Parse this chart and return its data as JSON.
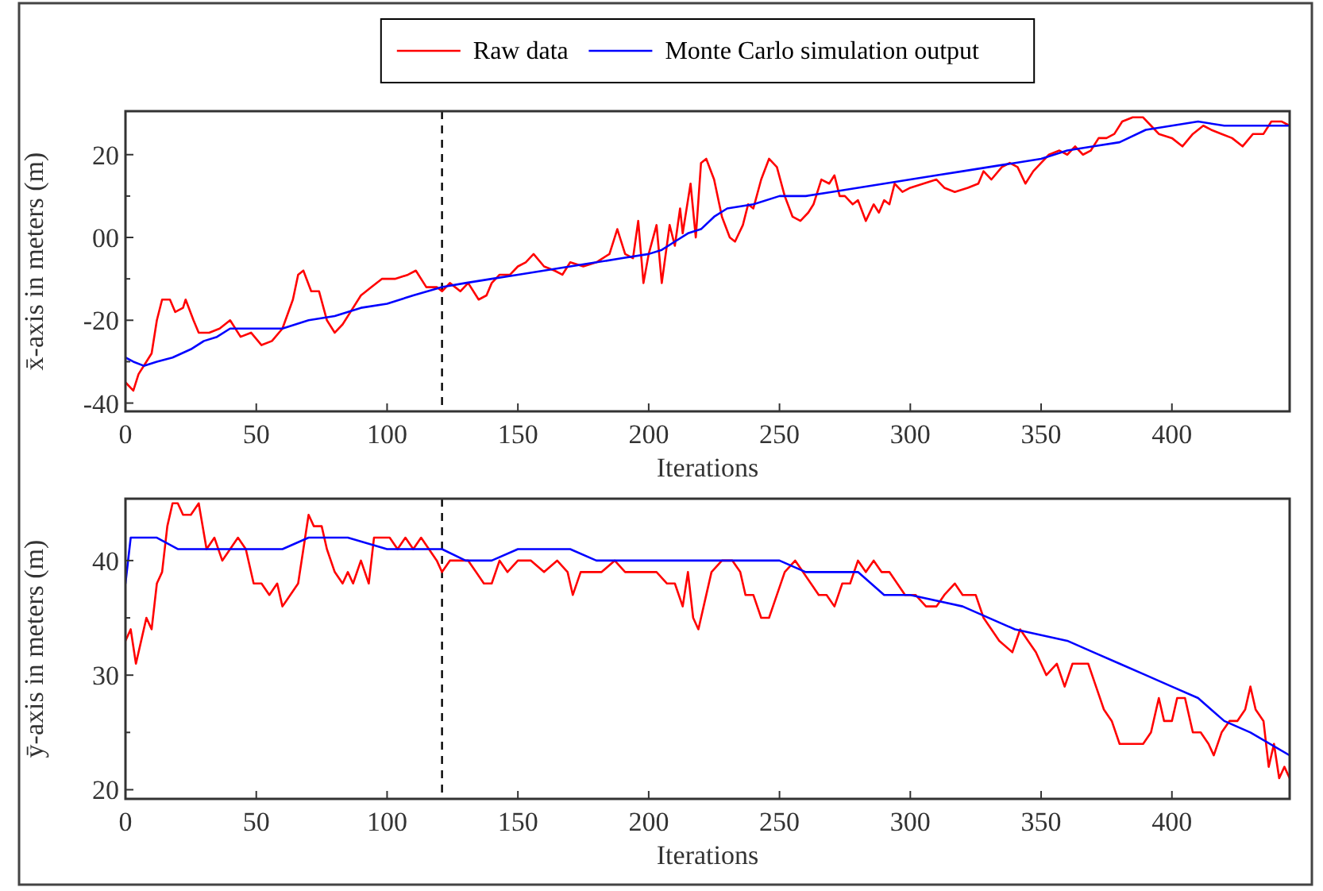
{
  "chart_data": [
    {
      "type": "line",
      "xlabel": "Iterations",
      "ylabel": "x̄-axis in meters (m)",
      "xlim": [
        0,
        445
      ],
      "ylim": [
        -42,
        30.5
      ],
      "xticks": [
        0,
        50,
        100,
        150,
        200,
        250,
        300,
        350,
        400
      ],
      "yticks": [
        -40,
        {
          "value": -30,
          "label": null
        },
        -20,
        {
          "value": -10,
          "label": null
        },
        {
          "value": 0,
          "label": "00"
        },
        {
          "value": 10,
          "label": null
        },
        20
      ],
      "legend": "top",
      "ref_lines": [
        {
          "axis": "x",
          "value": 121,
          "line_style": "dashed",
          "color": "#000000"
        }
      ],
      "series": [
        {
          "name": "Raw data",
          "color": "#ff0000",
          "x": [
            0,
            3,
            5,
            8,
            10,
            12,
            14,
            17,
            19,
            22,
            23,
            26,
            28,
            32,
            36,
            40,
            44,
            48,
            52,
            56,
            60,
            64,
            66,
            68,
            71,
            74,
            77,
            80,
            83,
            86,
            90,
            94,
            98,
            103,
            108,
            111,
            115,
            119,
            121,
            124,
            128,
            131,
            135,
            138,
            140,
            143,
            147,
            150,
            153,
            156,
            160,
            164,
            167,
            170,
            175,
            180,
            185,
            188,
            191,
            194,
            196,
            198,
            200,
            203,
            205,
            208,
            210,
            212,
            213,
            215,
            216,
            218,
            220,
            222,
            225,
            228,
            231,
            233,
            236,
            238,
            240,
            243,
            246,
            249,
            252,
            255,
            258,
            261,
            263,
            266,
            269,
            271,
            273,
            275,
            278,
            280,
            283,
            286,
            288,
            290,
            292,
            294,
            297,
            300,
            305,
            310,
            313,
            317,
            322,
            326,
            328,
            331,
            335,
            338,
            341,
            344,
            347,
            350,
            353,
            357,
            360,
            363,
            366,
            369,
            372,
            375,
            378,
            381,
            385,
            389,
            392,
            395,
            400,
            404,
            408,
            412,
            415,
            419,
            423,
            427,
            431,
            435,
            438,
            442,
            445
          ],
          "values": [
            -35,
            -37,
            -33,
            -30,
            -28,
            -20,
            -15,
            -15,
            -18,
            -17,
            -15,
            -20,
            -23,
            -23,
            -22,
            -20,
            -24,
            -23,
            -26,
            -25,
            -22,
            -15,
            -9,
            -8,
            -13,
            -13,
            -20,
            -23,
            -21,
            -18,
            -14,
            -12,
            -10,
            -10,
            -9,
            -8,
            -12,
            -12,
            -13,
            -11,
            -13,
            -11,
            -15,
            -14,
            -11,
            -9,
            -9,
            -7,
            -6,
            -4,
            -7,
            -8,
            -9,
            -6,
            -7,
            -6,
            -4,
            2,
            -4,
            -5,
            4,
            -11,
            -4,
            3,
            -11,
            3,
            -2,
            7,
            1,
            9,
            13,
            0,
            18,
            19,
            14,
            5,
            0,
            -1,
            3,
            8,
            7,
            14,
            19,
            17,
            10,
            5,
            4,
            6,
            8,
            14,
            13,
            15,
            10,
            10,
            8,
            9,
            4,
            8,
            6,
            9,
            8,
            13,
            11,
            12,
            13,
            14,
            12,
            11,
            12,
            13,
            16,
            14,
            17,
            18,
            17,
            13,
            16,
            18,
            20,
            21,
            20,
            22,
            20,
            21,
            24,
            24,
            25,
            28,
            29,
            29,
            27,
            25,
            24,
            22,
            25,
            27,
            26,
            25,
            24,
            22,
            25,
            25,
            28,
            28,
            27
          ]
        },
        {
          "name": "Monte Carlo simulation output",
          "color": "#0000ff",
          "x": [
            0,
            3,
            7,
            12,
            18,
            25,
            30,
            35,
            40,
            50,
            60,
            70,
            80,
            90,
            100,
            110,
            121,
            130,
            140,
            150,
            160,
            170,
            180,
            190,
            200,
            205,
            210,
            215,
            220,
            225,
            230,
            240,
            250,
            260,
            270,
            280,
            290,
            300,
            310,
            320,
            330,
            340,
            350,
            360,
            370,
            380,
            390,
            400,
            410,
            420,
            430,
            445
          ],
          "values": [
            -29,
            -30,
            -31,
            -30,
            -29,
            -27,
            -25,
            -24,
            -22,
            -22,
            -22,
            -20,
            -19,
            -17,
            -16,
            -14,
            -12,
            -11,
            -10,
            -9,
            -8,
            -7,
            -6,
            -5,
            -4,
            -3,
            -1,
            1,
            2,
            5,
            7,
            8,
            10,
            10,
            11,
            12,
            13,
            14,
            15,
            16,
            17,
            18,
            19,
            21,
            22,
            23,
            26,
            27,
            28,
            27,
            27,
            27
          ]
        }
      ]
    },
    {
      "type": "line",
      "xlabel": "Iterations",
      "ylabel": "ȳ-axis in meters (m)",
      "xlim": [
        0,
        445
      ],
      "ylim": [
        19.2,
        45.4
      ],
      "xticks": [
        0,
        50,
        100,
        150,
        200,
        250,
        300,
        350,
        400
      ],
      "yticks": [
        20,
        {
          "value": 25,
          "label": null
        },
        30,
        {
          "value": 35,
          "label": null
        },
        40
      ],
      "ref_lines": [
        {
          "axis": "x",
          "value": 121,
          "line_style": "dashed",
          "color": "#000000"
        }
      ],
      "series": [
        {
          "color": "#ff0000",
          "x": [
            0,
            2,
            4,
            6,
            8,
            10,
            12,
            14,
            16,
            18,
            20,
            22,
            25,
            28,
            31,
            34,
            37,
            40,
            43,
            46,
            49,
            52,
            55,
            58,
            60,
            63,
            66,
            68,
            70,
            72,
            75,
            77,
            80,
            83,
            85,
            87,
            90,
            93,
            95,
            98,
            101,
            104,
            107,
            110,
            113,
            116,
            119,
            121,
            124,
            127,
            131,
            134,
            137,
            140,
            143,
            146,
            150,
            155,
            160,
            165,
            169,
            171,
            174,
            178,
            182,
            187,
            191,
            195,
            200,
            203,
            207,
            210,
            213,
            215,
            217,
            219,
            221,
            224,
            228,
            232,
            235,
            237,
            240,
            243,
            246,
            249,
            252,
            256,
            259,
            262,
            265,
            268,
            271,
            274,
            277,
            280,
            283,
            286,
            289,
            292,
            295,
            298,
            302,
            306,
            310,
            313,
            317,
            320,
            325,
            328,
            331,
            334,
            339,
            342,
            345,
            348,
            352,
            356,
            359,
            362,
            365,
            368,
            371,
            374,
            377,
            380,
            383,
            386,
            389,
            392,
            395,
            397,
            400,
            402,
            405,
            408,
            411,
            414,
            416,
            419,
            422,
            425,
            428,
            430,
            432,
            435,
            437,
            439,
            441,
            443,
            445
          ],
          "values": [
            33,
            34,
            31,
            33,
            35,
            34,
            38,
            39,
            43,
            45,
            45,
            44,
            44,
            45,
            41,
            42,
            40,
            41,
            42,
            41,
            38,
            38,
            37,
            38,
            36,
            37,
            38,
            41,
            44,
            43,
            43,
            41,
            39,
            38,
            39,
            38,
            40,
            38,
            42,
            42,
            42,
            41,
            42,
            41,
            42,
            41,
            40,
            39,
            40,
            40,
            40,
            39,
            38,
            38,
            40,
            39,
            40,
            40,
            39,
            40,
            39,
            37,
            39,
            39,
            39,
            40,
            39,
            39,
            39,
            39,
            38,
            38,
            36,
            39,
            35,
            34,
            36,
            39,
            40,
            40,
            39,
            37,
            37,
            35,
            35,
            37,
            39,
            40,
            39,
            38,
            37,
            37,
            36,
            38,
            38,
            40,
            39,
            40,
            39,
            39,
            38,
            37,
            37,
            36,
            36,
            37,
            38,
            37,
            37,
            35,
            34,
            33,
            32,
            34,
            33,
            32,
            30,
            31,
            29,
            31,
            31,
            31,
            29,
            27,
            26,
            24,
            24,
            24,
            24,
            25,
            28,
            26,
            26,
            28,
            28,
            25,
            25,
            24,
            23,
            25,
            26,
            26,
            27,
            29,
            27,
            26,
            22,
            24,
            21,
            22,
            21
          ]
        },
        {
          "color": "#0000ff",
          "x": [
            0,
            2,
            10,
            12,
            20,
            30,
            40,
            50,
            60,
            70,
            85,
            100,
            110,
            121,
            130,
            140,
            150,
            160,
            170,
            180,
            200,
            220,
            240,
            250,
            260,
            280,
            290,
            300,
            320,
            340,
            360,
            370,
            380,
            390,
            400,
            410,
            420,
            430,
            445
          ],
          "values": [
            38,
            42,
            42,
            42,
            41,
            41,
            41,
            41,
            41,
            42,
            42,
            41,
            41,
            41,
            40,
            40,
            41,
            41,
            41,
            40,
            40,
            40,
            40,
            40,
            39,
            39,
            37,
            37,
            36,
            34,
            33,
            32,
            31,
            30,
            29,
            28,
            26,
            25,
            23
          ]
        }
      ]
    }
  ]
}
